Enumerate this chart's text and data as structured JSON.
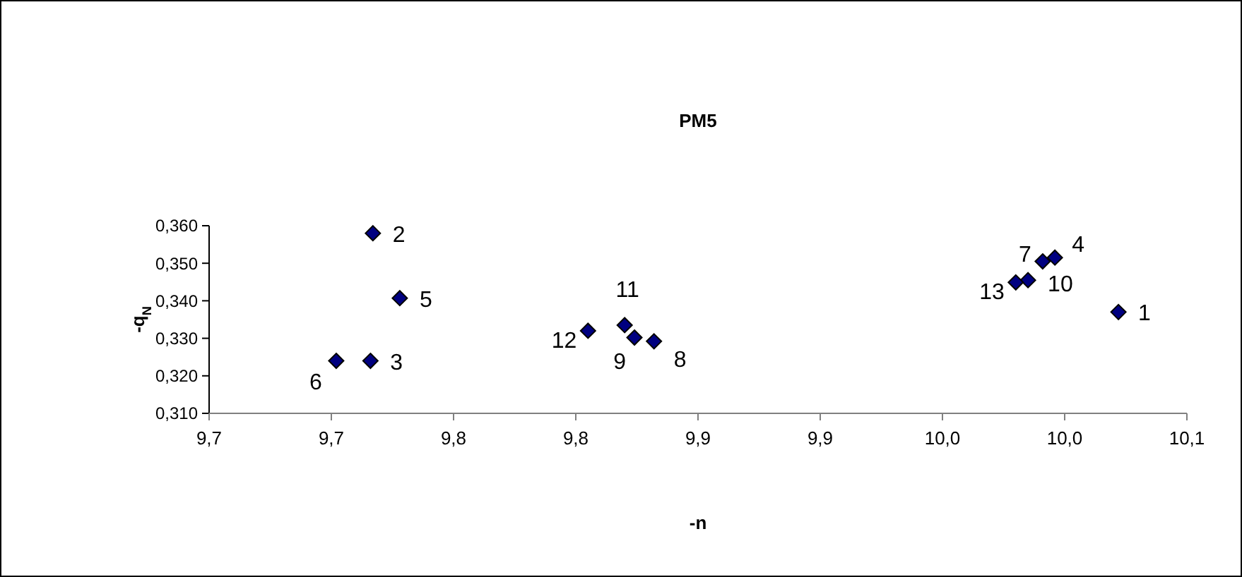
{
  "chart_data": {
    "type": "scatter",
    "title": "PM5",
    "xlabel": "-n",
    "ylabel": "-q$_{N}$",
    "x": [
      10.022,
      9.717,
      9.716,
      9.996,
      9.728,
      9.702,
      9.991,
      9.832,
      9.824,
      9.985,
      9.82,
      9.805,
      9.98
    ],
    "series": [
      {
        "color": "#000080",
        "values": [
          0.337,
          0.358,
          0.324,
          0.3515,
          0.3407,
          0.324,
          0.3505,
          0.3292,
          0.3302,
          0.3455,
          0.3335,
          0.332,
          0.3449
        ]
      }
    ],
    "marker": "diamond",
    "grid": false,
    "xlim": [
      9.65,
      10.05
    ],
    "xticks": [
      {
        "value": 9.65,
        "label": "9,7"
      },
      {
        "value": 9.7,
        "label": "9,7"
      },
      {
        "value": 9.75,
        "label": "9,8"
      },
      {
        "value": 9.8,
        "label": "9,8"
      },
      {
        "value": 9.85,
        "label": "9,9"
      },
      {
        "value": 9.9,
        "label": "9,9"
      },
      {
        "value": 9.95,
        "label": "10,0"
      },
      {
        "value": 10.0,
        "label": "10,0"
      },
      {
        "value": 10.05,
        "label": "10,1"
      }
    ],
    "ylim": [
      0.31,
      0.36
    ],
    "yticks": [
      {
        "value": 0.31,
        "label": "0,310"
      },
      {
        "value": 0.32,
        "label": "0,320"
      },
      {
        "value": 0.33,
        "label": "0,330"
      },
      {
        "value": 0.34,
        "label": "0,340"
      },
      {
        "value": 0.35,
        "label": "0,350"
      },
      {
        "value": 0.36,
        "label": "0,360"
      }
    ],
    "annotations": [
      {
        "text": "1",
        "x": 10.022,
        "y": 0.337
      },
      {
        "text": "2",
        "x": 9.717,
        "y": 0.358
      },
      {
        "text": "3",
        "x": 9.716,
        "y": 0.324
      },
      {
        "text": "4",
        "x": 9.996,
        "y": 0.3515
      },
      {
        "text": "5",
        "x": 9.728,
        "y": 0.3407
      },
      {
        "text": "6",
        "x": 9.702,
        "y": 0.324
      },
      {
        "text": "7",
        "x": 9.991,
        "y": 0.3505
      },
      {
        "text": "8",
        "x": 9.832,
        "y": 0.3292
      },
      {
        "text": "9",
        "x": 9.824,
        "y": 0.3302
      },
      {
        "text": "10",
        "x": 9.985,
        "y": 0.3455
      },
      {
        "text": "11",
        "x": 9.82,
        "y": 0.3335
      },
      {
        "text": "12",
        "x": 9.805,
        "y": 0.332
      },
      {
        "text": "13",
        "x": 9.98,
        "y": 0.3449
      }
    ]
  }
}
